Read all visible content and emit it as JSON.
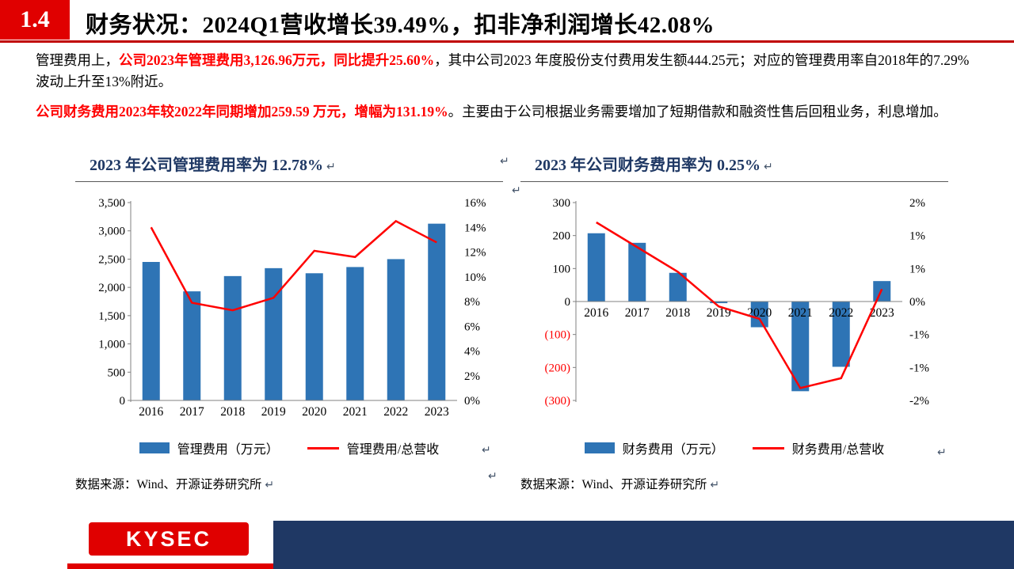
{
  "header": {
    "section_number": "1.4",
    "title": "财务状况：2024Q1营收增长39.49%，扣非净利润增长42.08%"
  },
  "paragraphs": {
    "p1_normal1": "管理费用上，",
    "p1_red": "公司2023年管理费用3,126.96万元，同比提升25.60%",
    "p1_normal2": "，其中公司2023 年度股份支付费用发生额444.25元；对应的管理费用率自2018年的7.29%波动上升至13%附近。",
    "p2_red": "公司财务费用2023年较2022年同期增加259.59 万元，增幅为131.19%",
    "p2_normal": "。主要由于公司根据业务需要增加了短期借款和融资性售后回租业务，利息增加。"
  },
  "chart_data": [
    {
      "type": "bar+line",
      "title": "2023 年公司管理费用率为 12.78%",
      "categories": [
        "2016",
        "2017",
        "2018",
        "2019",
        "2020",
        "2021",
        "2022",
        "2023"
      ],
      "series": [
        {
          "name": "管理费用（万元）",
          "type": "bar",
          "axis": "left",
          "values": [
            2450,
            1930,
            2200,
            2340,
            2250,
            2360,
            2500,
            3127
          ]
        },
        {
          "name": "管理费用/总营收",
          "type": "line",
          "axis": "right",
          "values": [
            14.0,
            7.9,
            7.29,
            8.3,
            12.1,
            11.6,
            14.5,
            12.78
          ]
        }
      ],
      "left_axis": {
        "range": [
          0,
          3500
        ],
        "ticks": [
          {
            "v": 3500,
            "label": "3,500"
          },
          {
            "v": 3000,
            "label": "3,000"
          },
          {
            "v": 2500,
            "label": "2,500"
          },
          {
            "v": 2000,
            "label": "2,000"
          },
          {
            "v": 1500,
            "label": "1,500"
          },
          {
            "v": 1000,
            "label": "1,000"
          },
          {
            "v": 500,
            "label": "500"
          },
          {
            "v": 0,
            "label": "0"
          }
        ]
      },
      "right_axis": {
        "range": [
          0,
          16
        ],
        "ticks": [
          {
            "v": 16,
            "label": "16%"
          },
          {
            "v": 14,
            "label": "14%"
          },
          {
            "v": 12,
            "label": "12%"
          },
          {
            "v": 10,
            "label": "10%"
          },
          {
            "v": 8,
            "label": "8%"
          },
          {
            "v": 6,
            "label": "6%"
          },
          {
            "v": 4,
            "label": "4%"
          },
          {
            "v": 2,
            "label": "2%"
          },
          {
            "v": 0,
            "label": "0%"
          }
        ]
      },
      "source": "数据来源：Wind、开源证券研究所"
    },
    {
      "type": "bar+line",
      "title": "2023 年公司财务费用率为 0.25%",
      "categories": [
        "2016",
        "2017",
        "2018",
        "2019",
        "2020",
        "2021",
        "2022",
        "2023"
      ],
      "series": [
        {
          "name": "财务费用（万元）",
          "type": "bar",
          "axis": "left",
          "values": [
            207,
            178,
            87,
            -5,
            -78,
            -272,
            -198,
            62
          ]
        },
        {
          "name": "财务费用/总营收",
          "type": "line",
          "axis": "right",
          "values": [
            1.6,
            1.1,
            0.6,
            -0.1,
            -0.35,
            -1.75,
            -1.55,
            0.25
          ]
        }
      ],
      "left_axis": {
        "range": [
          -300,
          300
        ],
        "ticks": [
          {
            "v": 300,
            "label": "300"
          },
          {
            "v": 200,
            "label": "200"
          },
          {
            "v": 100,
            "label": "100"
          },
          {
            "v": 0,
            "label": "0"
          },
          {
            "v": -100,
            "label": "(100)",
            "neg": true
          },
          {
            "v": -200,
            "label": "(200)",
            "neg": true
          },
          {
            "v": -300,
            "label": "(300)",
            "neg": true
          }
        ]
      },
      "right_axis": {
        "range": [
          -2,
          2
        ],
        "ticks": [
          {
            "v": 2,
            "label": "2%"
          },
          {
            "v": 1.3333,
            "label": "1%"
          },
          {
            "v": 0.6667,
            "label": "1%"
          },
          {
            "v": 0,
            "label": "0%"
          },
          {
            "v": -0.6667,
            "label": "-1%"
          },
          {
            "v": -1.3333,
            "label": "-1%"
          },
          {
            "v": -2,
            "label": "-2%"
          }
        ]
      },
      "source": "数据来源：Wind、开源证券研究所"
    }
  ],
  "marks": {
    "glyph": "↵"
  },
  "footer": {
    "logo_text": "KYSEC"
  },
  "colors": {
    "accent_red": "#E00000",
    "rule_red": "#C00000",
    "title_navy": "#1F3864",
    "bar_blue": "#2E74B5",
    "line_red": "#FF0000",
    "highlight_red": "#FF0000",
    "footer_navy": "#1F3864"
  }
}
